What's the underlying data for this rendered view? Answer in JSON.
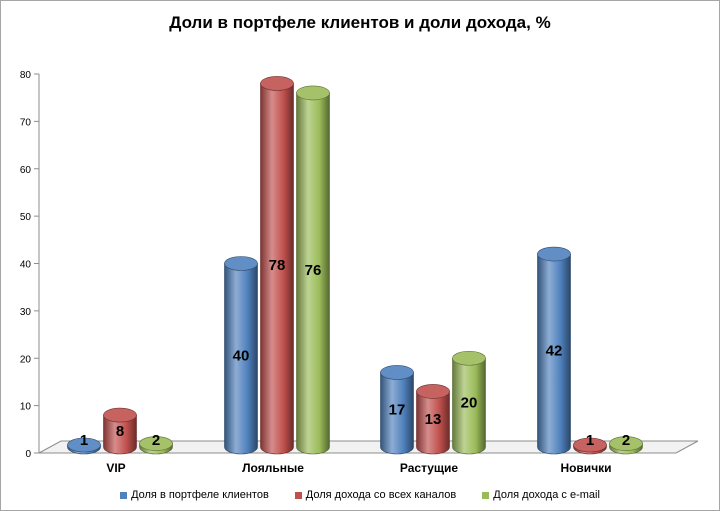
{
  "chart_data": {
    "type": "bar",
    "title": "Доли в портфеле клиентов и доли дохода, %",
    "categories": [
      "VIP",
      "Лояльные",
      "Растущие",
      "Новички"
    ],
    "series": [
      {
        "name": "Доля в портфеле  клиентов",
        "values": [
          1,
          40,
          17,
          42
        ],
        "color": "#4f81bd"
      },
      {
        "name": "Доля дохода со всех каналов",
        "values": [
          8,
          78,
          13,
          1
        ],
        "color": "#c0504d"
      },
      {
        "name": "Доля дохода с e-mail",
        "values": [
          2,
          76,
          20,
          2
        ],
        "color": "#9bbb59"
      }
    ],
    "ylim": [
      0,
      80
    ],
    "yticks": [
      0,
      10,
      20,
      30,
      40,
      50,
      60,
      70,
      80
    ],
    "grid": false,
    "legend_position": "bottom",
    "style": "3d-cylinder"
  }
}
